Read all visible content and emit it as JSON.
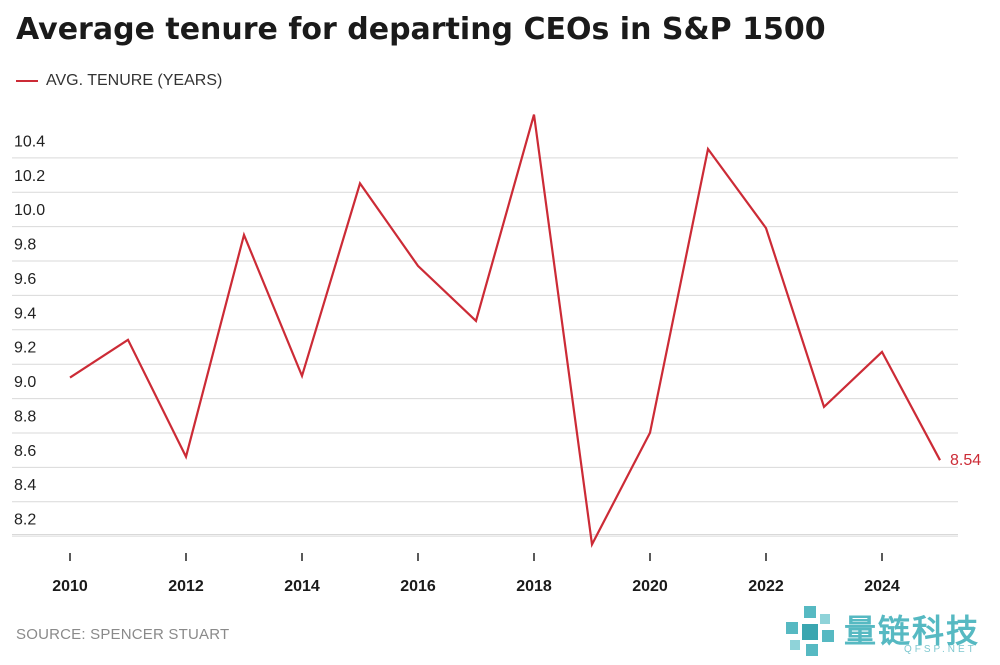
{
  "chart_data": {
    "type": "line",
    "title": "Average tenure for departing CEOs in S&P 1500",
    "legend": {
      "placement": "top-left"
    },
    "series": [
      {
        "name": "AVG. TENURE (YEARS)",
        "color": "#cc2b36",
        "x": [
          2010,
          2011,
          2012,
          2013,
          2014,
          2015,
          2016,
          2017,
          2018,
          2019,
          2020,
          2021,
          2022,
          2023,
          2024,
          2025
        ],
        "values": [
          9.02,
          9.24,
          8.56,
          9.85,
          9.03,
          10.15,
          9.67,
          9.35,
          10.55,
          8.05,
          8.7,
          10.35,
          9.89,
          8.85,
          9.17,
          8.54
        ]
      }
    ],
    "end_label": "8.54",
    "x_ticks": [
      "2010",
      "2012",
      "2014",
      "2016",
      "2018",
      "2020",
      "2022",
      "2024"
    ],
    "y_ticks": [
      "8.2",
      "8.4",
      "8.6",
      "8.8",
      "9.0",
      "9.2",
      "9.4",
      "9.6",
      "9.8",
      "10.0",
      "10.2",
      "10.4"
    ],
    "xlim": [
      2010,
      2025
    ],
    "ylim": [
      8.0,
      10.6
    ],
    "grid": "horizontal",
    "source": "SOURCE: SPENCER STUART"
  },
  "watermark": {
    "text": "量链科技",
    "sub": "QFSP.NET"
  }
}
